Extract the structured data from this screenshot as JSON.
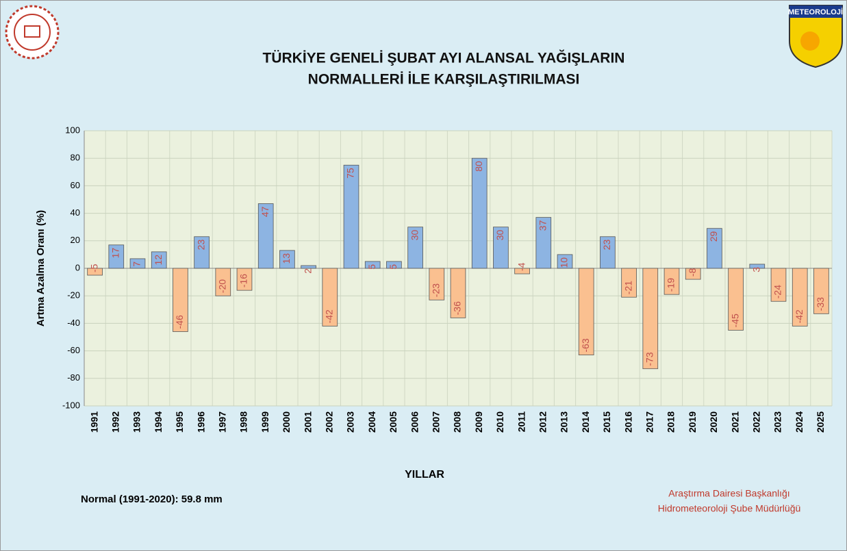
{
  "chart_data": {
    "type": "bar",
    "title": [
      "TÜRKİYE GENELİ ŞUBAT AYI ALANSAL YAĞIŞLARIN",
      "NORMALLERİ İLE KARŞILAŞTIRILMASI"
    ],
    "y_label": "Artma Azalma Oranı (%)",
    "x_label": "YILLAR",
    "note": "Normal (1991-2020): 59.8 mm",
    "footer": [
      "Araştırma Dairesi Başkanlığı",
      "Hidrometeoroloji Şube Müdürlüğü"
    ],
    "badge": "METEOROLOJİ",
    "categories": [
      "1991",
      "1992",
      "1993",
      "1994",
      "1995",
      "1996",
      "1997",
      "1998",
      "1999",
      "2000",
      "2001",
      "2002",
      "2003",
      "2004",
      "2005",
      "2006",
      "2007",
      "2008",
      "2009",
      "2010",
      "2011",
      "2012",
      "2013",
      "2014",
      "2015",
      "2016",
      "2017",
      "2018",
      "2019",
      "2020",
      "2021",
      "2022",
      "2023",
      "2024",
      "2025"
    ],
    "values": [
      -5,
      17,
      7,
      12,
      -46,
      23,
      -20,
      -16,
      47,
      13,
      2,
      -42,
      75,
      5,
      5,
      30,
      -23,
      -36,
      80,
      30,
      -4,
      37,
      10,
      -63,
      23,
      -21,
      -73,
      -19,
      -8,
      29,
      -45,
      3,
      -24,
      -42,
      -33
    ],
    "positive_color": "#8db4e2",
    "negative_color": "#fac090",
    "label_color": "#c0504d",
    "ylim": [
      -100,
      100
    ],
    "yticks": [
      -100,
      -80,
      -60,
      -40,
      -20,
      0,
      20,
      40,
      60,
      80,
      100
    ],
    "grid": true
  }
}
